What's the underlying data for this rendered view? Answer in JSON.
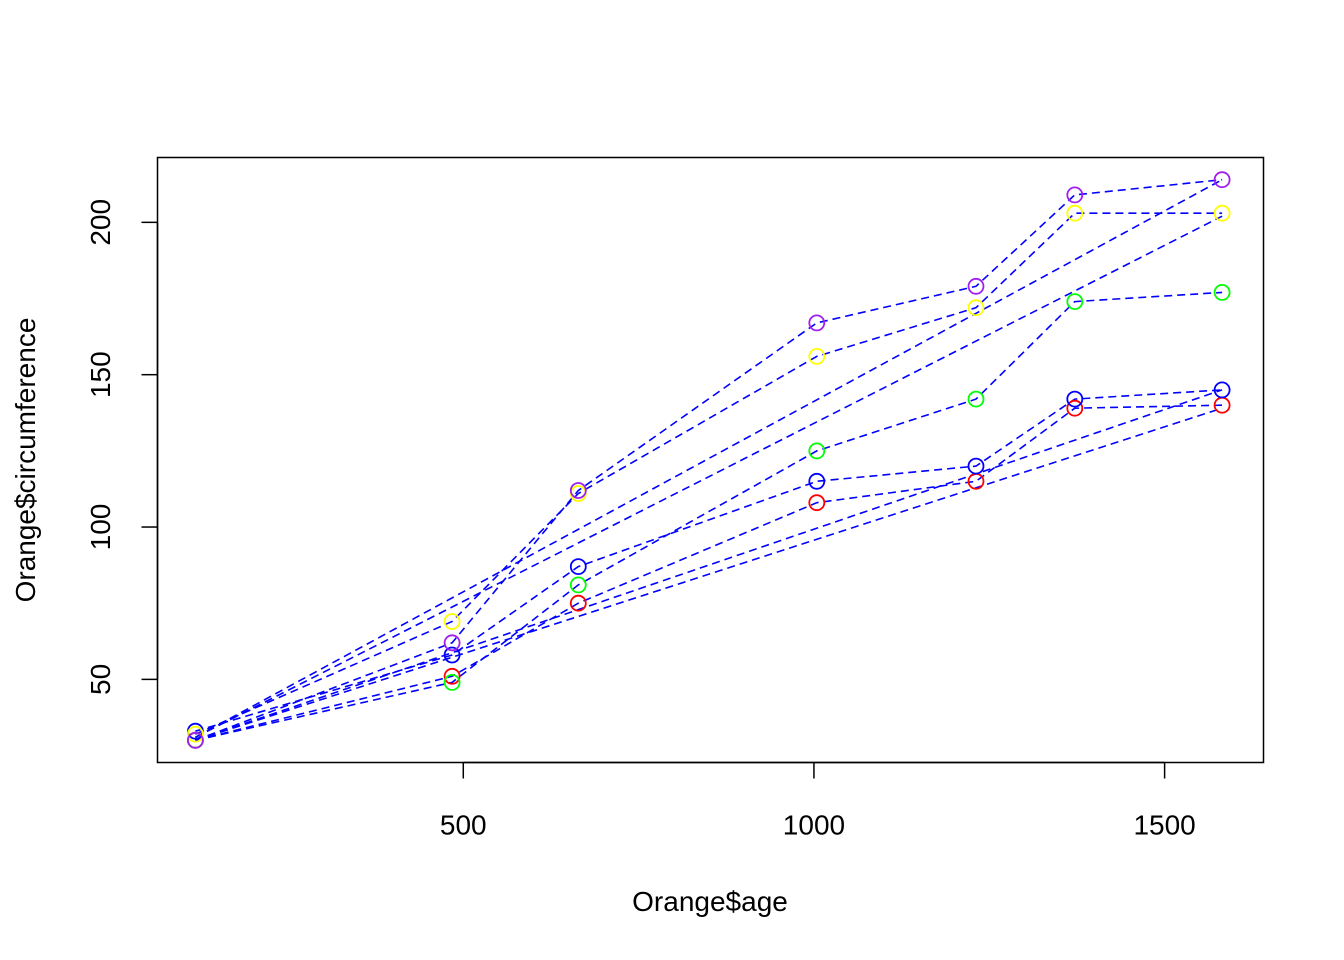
{
  "chart_data": {
    "type": "scatter",
    "title": "",
    "xlabel": "Orange$age",
    "ylabel": "Orange$circumference",
    "xlim": [
      64,
      1641
    ],
    "ylim": [
      22.72,
      221.28
    ],
    "x_ticks": [
      500,
      1000,
      1500
    ],
    "y_ticks": [
      50,
      100,
      150,
      200
    ],
    "grid": false,
    "legend": "none",
    "x": [
      118,
      484,
      664,
      1004,
      1231,
      1372,
      1582
    ],
    "series": [
      {
        "point_color": "#ff0000",
        "values": [
          30,
          51,
          75,
          108,
          115,
          139,
          140
        ]
      },
      {
        "point_color": "#0000ff",
        "values": [
          33,
          58,
          87,
          115,
          120,
          142,
          145
        ]
      },
      {
        "point_color": "#00ff00",
        "values": [
          30,
          49,
          81,
          125,
          142,
          174,
          177
        ]
      },
      {
        "point_color": "#ffff00",
        "values": [
          32,
          69,
          111,
          156,
          172,
          203,
          203
        ]
      },
      {
        "point_color": "#a020f0",
        "values": [
          30,
          62,
          112,
          167,
          179,
          209,
          214
        ]
      }
    ],
    "dashed_lines": [
      {
        "line_color": "#0000ff",
        "x": [
          118,
          484,
          664,
          1004,
          1231,
          1372,
          1582
        ],
        "values": [
          30,
          51,
          75,
          108,
          115,
          139,
          140
        ]
      },
      {
        "line_color": "#0000ff",
        "x": [
          118,
          484,
          664,
          1004,
          1231,
          1372,
          1582
        ],
        "values": [
          33,
          58,
          87,
          115,
          120,
          142,
          145
        ]
      },
      {
        "line_color": "#0000ff",
        "x": [
          118,
          484,
          664,
          1004,
          1231,
          1372,
          1582
        ],
        "values": [
          30,
          49,
          81,
          125,
          142,
          174,
          177
        ]
      },
      {
        "line_color": "#0000ff",
        "x": [
          118,
          484,
          664,
          1004,
          1231,
          1372,
          1582
        ],
        "values": [
          32,
          69,
          111,
          156,
          172,
          203,
          203
        ]
      },
      {
        "line_color": "#0000ff",
        "x": [
          118,
          484,
          664,
          1004,
          1231,
          1372,
          1582
        ],
        "values": [
          30,
          62,
          112,
          167,
          179,
          209,
          214
        ]
      },
      {
        "line_color": "#0000ff",
        "x": [
          118,
          1582
        ],
        "values": [
          30,
          139
        ]
      },
      {
        "line_color": "#0000ff",
        "x": [
          118,
          1582
        ],
        "values": [
          30,
          145
        ]
      },
      {
        "line_color": "#0000ff",
        "x": [
          118,
          1582
        ],
        "values": [
          31,
          202
        ]
      },
      {
        "line_color": "#0000ff",
        "x": [
          118,
          1582
        ],
        "values": [
          31,
          214
        ]
      }
    ]
  }
}
